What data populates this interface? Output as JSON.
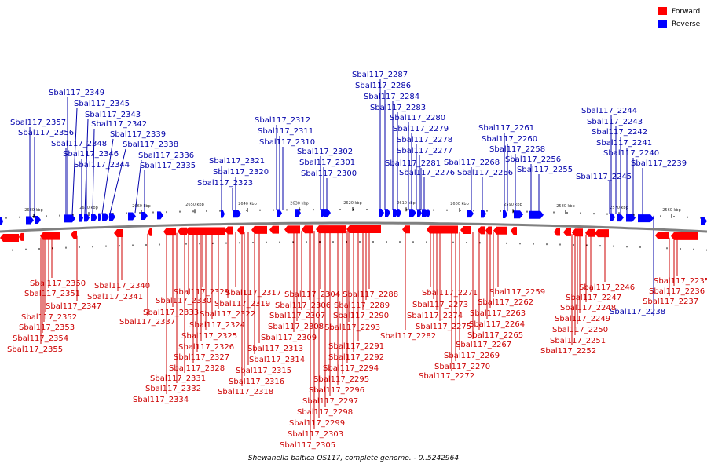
{
  "legend": {
    "forward_label": "Forward",
    "reverse_label": "Reverse",
    "forward_color": "#ff0000",
    "reverse_color": "#0000ff"
  },
  "caption": "Shewanella baltica OS117, complete genome. - 0..5242964",
  "colors": {
    "backbone": "#808080",
    "forward_label": "#cc0000",
    "reverse_label": "#0000aa"
  },
  "ticks": [
    "2680 kbp",
    "2670 kbp",
    "2660 kbp",
    "2650 kbp",
    "2640 kbp",
    "2630 kbp",
    "2620 kbp",
    "2610 kbp",
    "2600 kbp",
    "2590 kbp",
    "2580 kbp",
    "2570 kbp",
    "2560 kbp"
  ],
  "reverse_genes": [
    "Sbal117_2349",
    "Sbal117_2345",
    "Sbal117_2343",
    "Sbal117_2342",
    "Sbal117_2357",
    "Sbal117_2356",
    "Sbal117_2339",
    "Sbal117_2348",
    "Sbal117_2338",
    "Sbal117_2346",
    "Sbal117_2336",
    "Sbal117_2344",
    "Sbal117_2335",
    "Sbal117_2321",
    "Sbal117_2320",
    "Sbal117_2323",
    "Sbal117_2312",
    "Sbal117_2311",
    "Sbal117_2310",
    "Sbal117_2302",
    "Sbal117_2301",
    "Sbal117_2300",
    "Sbal117_2287",
    "Sbal117_2286",
    "Sbal117_2284",
    "Sbal117_2283",
    "Sbal117_2280",
    "Sbal117_2279",
    "Sbal117_2278",
    "Sbal117_2277",
    "Sbal117_2281",
    "Sbal117_2276",
    "Sbal117_2261",
    "Sbal117_2260",
    "Sbal117_2258",
    "Sbal117_2268",
    "Sbal117_2266",
    "Sbal117_2256",
    "Sbal117_2255",
    "Sbal117_2244",
    "Sbal117_2243",
    "Sbal117_2242",
    "Sbal117_2241",
    "Sbal117_2240",
    "Sbal117_2245",
    "Sbal117_2239",
    "Sbal117_2238"
  ],
  "forward_genes": [
    "Sbal117_2350",
    "Sbal117_2351",
    "Sbal117_2347",
    "Sbal117_2352",
    "Sbal117_2353",
    "Sbal117_2354",
    "Sbal117_2355",
    "Sbal117_2340",
    "Sbal117_2341",
    "Sbal117_2337",
    "Sbal117_2329",
    "Sbal117_2330",
    "Sbal117_2333",
    "Sbal117_2331",
    "Sbal117_2332",
    "Sbal117_2334",
    "Sbal117_2328",
    "Sbal117_2327",
    "Sbal117_2326",
    "Sbal117_2325",
    "Sbal117_2324",
    "Sbal117_2322",
    "Sbal117_2319",
    "Sbal117_2317",
    "Sbal117_2313",
    "Sbal117_2314",
    "Sbal117_2315",
    "Sbal117_2316",
    "Sbal117_2318",
    "Sbal117_2304",
    "Sbal117_2306",
    "Sbal117_2307",
    "Sbal117_2308",
    "Sbal117_2309",
    "Sbal117_2303",
    "Sbal117_2305",
    "Sbal117_2299",
    "Sbal117_2298",
    "Sbal117_2297",
    "Sbal117_2296",
    "Sbal117_2295",
    "Sbal117_2294",
    "Sbal117_2292",
    "Sbal117_2291",
    "Sbal117_2293",
    "Sbal117_2290",
    "Sbal117_2289",
    "Sbal117_2288",
    "Sbal117_2282",
    "Sbal117_2271",
    "Sbal117_2273",
    "Sbal117_2274",
    "Sbal117_2275",
    "Sbal117_2272",
    "Sbal117_2270",
    "Sbal117_2269",
    "Sbal117_2267",
    "Sbal117_2265",
    "Sbal117_2264",
    "Sbal117_2263",
    "Sbal117_2262",
    "Sbal117_2259",
    "Sbal117_2246",
    "Sbal117_2247",
    "Sbal117_2248",
    "Sbal117_2249",
    "Sbal117_2250",
    "Sbal117_2251",
    "Sbal117_2252",
    "Sbal117_2235",
    "Sbal117_2236",
    "Sbal117_2237"
  ]
}
